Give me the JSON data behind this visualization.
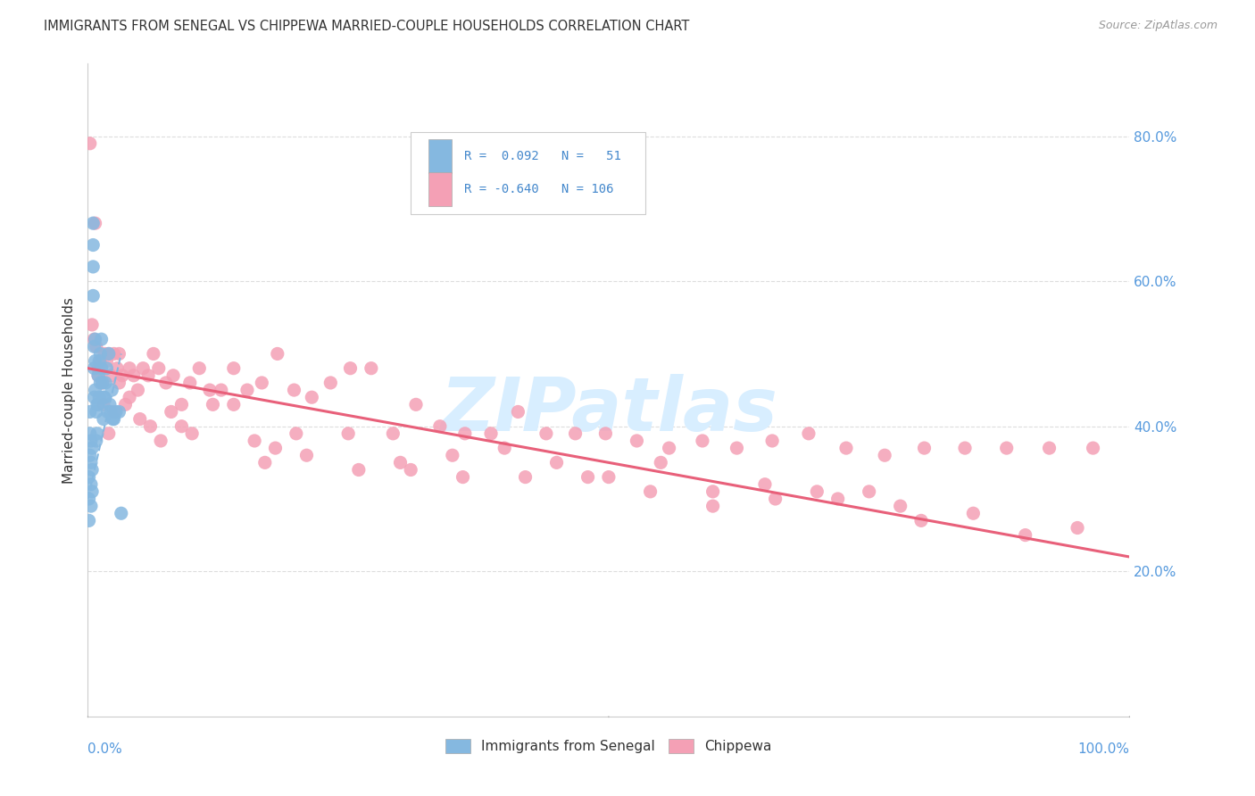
{
  "title": "IMMIGRANTS FROM SENEGAL VS CHIPPEWA MARRIED-COUPLE HOUSEHOLDS CORRELATION CHART",
  "source": "Source: ZipAtlas.com",
  "ylabel": "Married-couple Households",
  "legend_label_blue": "Immigrants from Senegal",
  "legend_label_pink": "Chippewa",
  "legend_line1": "R =  0.092   N =   51",
  "legend_line2": "R = -0.640   N = 106",
  "blue_color": "#85B8E0",
  "pink_color": "#F4A0B5",
  "blue_line_color": "#85B8E0",
  "pink_line_color": "#E8607A",
  "watermark_color": "#D8EEFF",
  "blue_scatter_x": [
    0.001,
    0.001,
    0.001,
    0.002,
    0.002,
    0.002,
    0.003,
    0.003,
    0.003,
    0.003,
    0.004,
    0.004,
    0.004,
    0.005,
    0.005,
    0.005,
    0.005,
    0.006,
    0.006,
    0.006,
    0.007,
    0.007,
    0.007,
    0.008,
    0.008,
    0.009,
    0.009,
    0.01,
    0.01,
    0.011,
    0.011,
    0.012,
    0.012,
    0.013,
    0.013,
    0.014,
    0.015,
    0.015,
    0.016,
    0.017,
    0.018,
    0.019,
    0.02,
    0.021,
    0.022,
    0.023,
    0.024,
    0.025,
    0.027,
    0.03,
    0.032
  ],
  "blue_scatter_y": [
    0.27,
    0.3,
    0.33,
    0.36,
    0.39,
    0.42,
    0.29,
    0.32,
    0.35,
    0.38,
    0.31,
    0.34,
    0.37,
    0.58,
    0.62,
    0.65,
    0.68,
    0.44,
    0.48,
    0.51,
    0.45,
    0.49,
    0.52,
    0.38,
    0.42,
    0.39,
    0.43,
    0.43,
    0.47,
    0.44,
    0.49,
    0.46,
    0.5,
    0.48,
    0.52,
    0.46,
    0.41,
    0.44,
    0.44,
    0.46,
    0.48,
    0.42,
    0.5,
    0.43,
    0.42,
    0.45,
    0.41,
    0.41,
    0.42,
    0.42,
    0.28
  ],
  "pink_scatter_x": [
    0.002,
    0.004,
    0.006,
    0.007,
    0.008,
    0.01,
    0.012,
    0.014,
    0.016,
    0.018,
    0.02,
    0.022,
    0.025,
    0.028,
    0.03,
    0.033,
    0.036,
    0.04,
    0.044,
    0.048,
    0.053,
    0.058,
    0.063,
    0.068,
    0.075,
    0.082,
    0.09,
    0.098,
    0.107,
    0.117,
    0.128,
    0.14,
    0.153,
    0.167,
    0.182,
    0.198,
    0.215,
    0.233,
    0.252,
    0.272,
    0.293,
    0.315,
    0.338,
    0.362,
    0.387,
    0.413,
    0.44,
    0.468,
    0.497,
    0.527,
    0.558,
    0.59,
    0.623,
    0.657,
    0.692,
    0.728,
    0.765,
    0.803,
    0.842,
    0.882,
    0.923,
    0.965,
    0.01,
    0.015,
    0.02,
    0.025,
    0.03,
    0.04,
    0.05,
    0.06,
    0.07,
    0.08,
    0.09,
    0.1,
    0.12,
    0.14,
    0.16,
    0.18,
    0.2,
    0.25,
    0.3,
    0.35,
    0.4,
    0.45,
    0.5,
    0.55,
    0.6,
    0.65,
    0.7,
    0.75,
    0.8,
    0.85,
    0.9,
    0.95,
    0.17,
    0.21,
    0.26,
    0.31,
    0.36,
    0.42,
    0.48,
    0.54,
    0.6,
    0.66,
    0.72,
    0.78
  ],
  "pink_scatter_y": [
    0.79,
    0.54,
    0.52,
    0.68,
    0.51,
    0.48,
    0.49,
    0.46,
    0.5,
    0.49,
    0.5,
    0.47,
    0.5,
    0.48,
    0.5,
    0.47,
    0.43,
    0.48,
    0.47,
    0.45,
    0.48,
    0.47,
    0.5,
    0.48,
    0.46,
    0.47,
    0.43,
    0.46,
    0.48,
    0.45,
    0.45,
    0.48,
    0.45,
    0.46,
    0.5,
    0.45,
    0.44,
    0.46,
    0.48,
    0.48,
    0.39,
    0.43,
    0.4,
    0.39,
    0.39,
    0.42,
    0.39,
    0.39,
    0.39,
    0.38,
    0.37,
    0.38,
    0.37,
    0.38,
    0.39,
    0.37,
    0.36,
    0.37,
    0.37,
    0.37,
    0.37,
    0.37,
    0.47,
    0.43,
    0.39,
    0.42,
    0.46,
    0.44,
    0.41,
    0.4,
    0.38,
    0.42,
    0.4,
    0.39,
    0.43,
    0.43,
    0.38,
    0.37,
    0.39,
    0.39,
    0.35,
    0.36,
    0.37,
    0.35,
    0.33,
    0.35,
    0.31,
    0.32,
    0.31,
    0.31,
    0.27,
    0.28,
    0.25,
    0.26,
    0.35,
    0.36,
    0.34,
    0.34,
    0.33,
    0.33,
    0.33,
    0.31,
    0.29,
    0.3,
    0.3,
    0.29
  ],
  "blue_trend_x": [
    0.0,
    0.032
  ],
  "blue_trend_y": [
    0.3,
    0.5
  ],
  "pink_trend_x": [
    0.0,
    1.0
  ],
  "pink_trend_y": [
    0.48,
    0.22
  ],
  "xlim": [
    0.0,
    1.0
  ],
  "ylim": [
    0.0,
    0.9
  ],
  "yticks": [
    0.2,
    0.4,
    0.6,
    0.8
  ],
  "ytick_labels": [
    "20.0%",
    "40.0%",
    "60.0%",
    "80.0%"
  ],
  "xtick_label_left": "0.0%",
  "xtick_label_right": "100.0%",
  "background_color": "#FFFFFF",
  "grid_color": "#DDDDDD",
  "title_color": "#333333",
  "source_color": "#999999",
  "axis_label_color": "#333333",
  "ytick_color": "#5599DD",
  "xtick_color": "#5599DD"
}
